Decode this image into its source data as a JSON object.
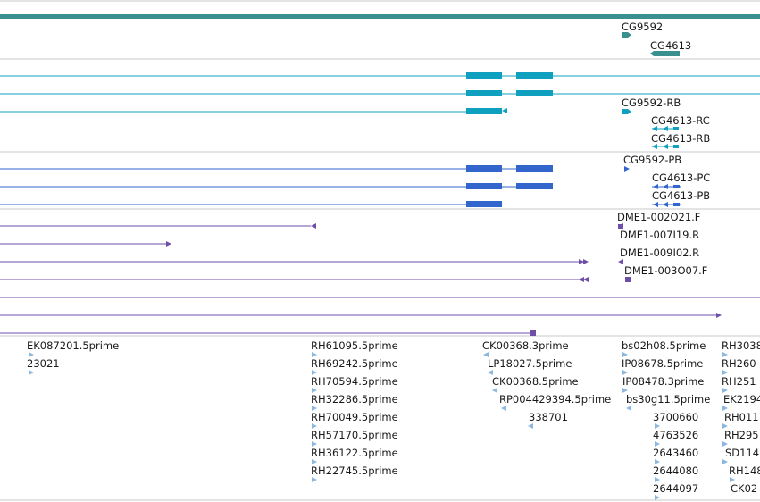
{
  "colors": {
    "gene": "#3a8f8f",
    "mrna_flybase": "#0fa0c0",
    "mrna_refseq": "#3366cc",
    "est": "#6e4fa8",
    "cdna": "#8ab8e0",
    "track_border": "#c8c8c8"
  },
  "tracks": {
    "genes": {
      "labels": [
        {
          "id": "g1",
          "text": "CG9592"
        },
        {
          "id": "g2",
          "text": "CG4613"
        }
      ]
    },
    "transcripts_a": {
      "labels": [
        {
          "id": "a1",
          "text": "CG9592-RB"
        },
        {
          "id": "a2",
          "text": "CG4613-RC"
        },
        {
          "id": "a3",
          "text": "CG4613-RB"
        }
      ]
    },
    "transcripts_b": {
      "labels": [
        {
          "id": "b1",
          "text": "CG9592-PB"
        },
        {
          "id": "b2",
          "text": "CG4613-PC"
        },
        {
          "id": "b3",
          "text": "CG4613-PB"
        }
      ]
    },
    "est_alignments": {
      "labels": [
        {
          "id": "e1",
          "text": "DME1-002O21.F"
        },
        {
          "id": "e2",
          "text": "DME1-007I19.R"
        },
        {
          "id": "e3",
          "text": "DME1-009I02.R"
        },
        {
          "id": "e4",
          "text": "DME1-003O07.F"
        }
      ]
    },
    "cdna_reads": {
      "labels": [
        {
          "id": "c1",
          "text": "EK087201.5prime"
        },
        {
          "id": "c2",
          "text": "23021"
        },
        {
          "id": "c3",
          "text": "RH61095.5prime"
        },
        {
          "id": "c4",
          "text": "RH69242.5prime"
        },
        {
          "id": "c5",
          "text": "RH70594.5prime"
        },
        {
          "id": "c6",
          "text": "RH32286.5prime"
        },
        {
          "id": "c7",
          "text": "RH70049.5prime"
        },
        {
          "id": "c8",
          "text": "RH57170.5prime"
        },
        {
          "id": "c9",
          "text": "RH36122.5prime"
        },
        {
          "id": "c10",
          "text": "RH22745.5prime"
        },
        {
          "id": "c11",
          "text": "CK00368.3prime"
        },
        {
          "id": "c12",
          "text": "LP18027.5prime"
        },
        {
          "id": "c13",
          "text": "CK00368.5prime"
        },
        {
          "id": "c14",
          "text": "RP004429394.5prime"
        },
        {
          "id": "c15",
          "text": "338701"
        },
        {
          "id": "c16",
          "text": "bs02h08.5prime"
        },
        {
          "id": "c17",
          "text": "IP08678.5prime"
        },
        {
          "id": "c18",
          "text": "IP08478.3prime"
        },
        {
          "id": "c19",
          "text": "bs30g11.5prime"
        },
        {
          "id": "c20",
          "text": "3700660"
        },
        {
          "id": "c21",
          "text": "4763526"
        },
        {
          "id": "c22",
          "text": "2643460"
        },
        {
          "id": "c23",
          "text": "2644080"
        },
        {
          "id": "c24",
          "text": "2644097"
        },
        {
          "id": "c25",
          "text": "RH3038"
        },
        {
          "id": "c26",
          "text": "RH260"
        },
        {
          "id": "c27",
          "text": "RH251"
        },
        {
          "id": "c28",
          "text": "EK2194"
        },
        {
          "id": "c29",
          "text": "RH011"
        },
        {
          "id": "c30",
          "text": "RH295"
        },
        {
          "id": "c31",
          "text": "SD114"
        },
        {
          "id": "c32",
          "text": "RH148"
        },
        {
          "id": "c33",
          "text": "CK02"
        }
      ]
    }
  }
}
